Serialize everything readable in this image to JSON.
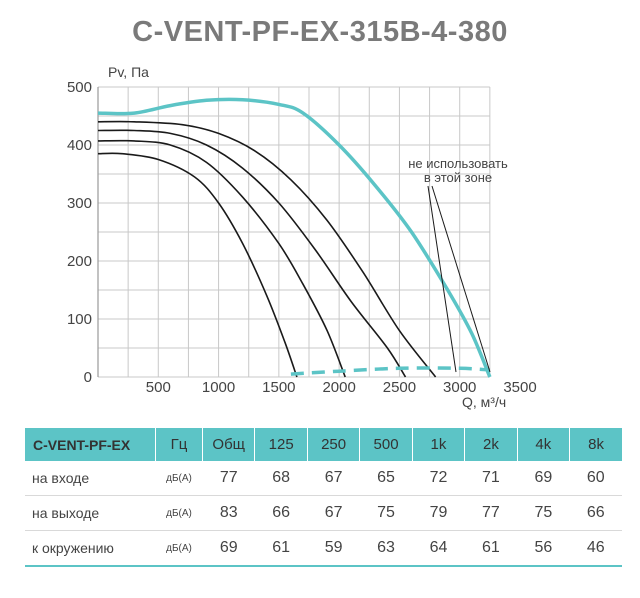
{
  "title": "C-VENT-PF-EX-315B-4-380",
  "chart_data": {
    "type": "line",
    "ylabel": "Pv, Па",
    "xlabel": "Q, м³/ч",
    "xlim": [
      0,
      3500
    ],
    "ylim": [
      0,
      500
    ],
    "x_ticks": [
      "500",
      "1000",
      "1500",
      "2000",
      "2500",
      "3000",
      "3500"
    ],
    "y_ticks": [
      "0",
      "100",
      "200",
      "300",
      "400",
      "500"
    ],
    "grid": true,
    "annotation": [
      "не использовать",
      "в этой зоне"
    ],
    "colors": {
      "accent": "#5cc4c6",
      "curve": "#1a1a1a",
      "grid": "#c8c8c8"
    },
    "series": [
      {
        "style": "max",
        "points": [
          [
            0,
            455
          ],
          [
            300,
            455
          ],
          [
            600,
            468
          ],
          [
            900,
            477
          ],
          [
            1200,
            478
          ],
          [
            1500,
            470
          ],
          [
            1700,
            455
          ],
          [
            2000,
            400
          ],
          [
            2300,
            330
          ],
          [
            2600,
            250
          ],
          [
            2900,
            150
          ],
          [
            3100,
            75
          ],
          [
            3250,
            0
          ]
        ]
      },
      {
        "style": "black",
        "points": [
          [
            0,
            440
          ],
          [
            300,
            440
          ],
          [
            700,
            435
          ],
          [
            1000,
            420
          ],
          [
            1300,
            390
          ],
          [
            1600,
            340
          ],
          [
            1900,
            270
          ],
          [
            2200,
            180
          ],
          [
            2500,
            80
          ],
          [
            2800,
            0
          ]
        ]
      },
      {
        "style": "black",
        "points": [
          [
            0,
            425
          ],
          [
            300,
            425
          ],
          [
            600,
            420
          ],
          [
            900,
            400
          ],
          [
            1200,
            360
          ],
          [
            1500,
            300
          ],
          [
            1800,
            220
          ],
          [
            2100,
            130
          ],
          [
            2400,
            50
          ],
          [
            2550,
            0
          ]
        ]
      },
      {
        "style": "black",
        "points": [
          [
            0,
            407
          ],
          [
            300,
            407
          ],
          [
            600,
            400
          ],
          [
            900,
            370
          ],
          [
            1200,
            310
          ],
          [
            1500,
            230
          ],
          [
            1700,
            160
          ],
          [
            1900,
            80
          ],
          [
            2050,
            0
          ]
        ]
      },
      {
        "style": "black",
        "points": [
          [
            0,
            385
          ],
          [
            200,
            385
          ],
          [
            500,
            375
          ],
          [
            800,
            345
          ],
          [
            1000,
            300
          ],
          [
            1200,
            230
          ],
          [
            1400,
            140
          ],
          [
            1550,
            60
          ],
          [
            1650,
            0
          ]
        ]
      },
      {
        "style": "dashed",
        "points": [
          [
            1600,
            5
          ],
          [
            2000,
            10
          ],
          [
            2500,
            15
          ],
          [
            3000,
            15
          ],
          [
            3250,
            12
          ]
        ]
      }
    ]
  },
  "table": {
    "headers": [
      "C-VENT-PF-EX",
      "Гц",
      "Общ",
      "125",
      "250",
      "500",
      "1k",
      "2k",
      "4k",
      "8k"
    ],
    "rows": [
      {
        "label": "на входе",
        "unit": "дБ(А)",
        "values": [
          "77",
          "68",
          "67",
          "65",
          "72",
          "71",
          "69",
          "60"
        ]
      },
      {
        "label": "на выходе",
        "unit": "дБ(А)",
        "values": [
          "83",
          "66",
          "67",
          "75",
          "79",
          "77",
          "75",
          "66"
        ]
      },
      {
        "label": "к окружению",
        "unit": "дБ(А)",
        "values": [
          "69",
          "61",
          "59",
          "63",
          "64",
          "61",
          "56",
          "46"
        ]
      }
    ]
  }
}
